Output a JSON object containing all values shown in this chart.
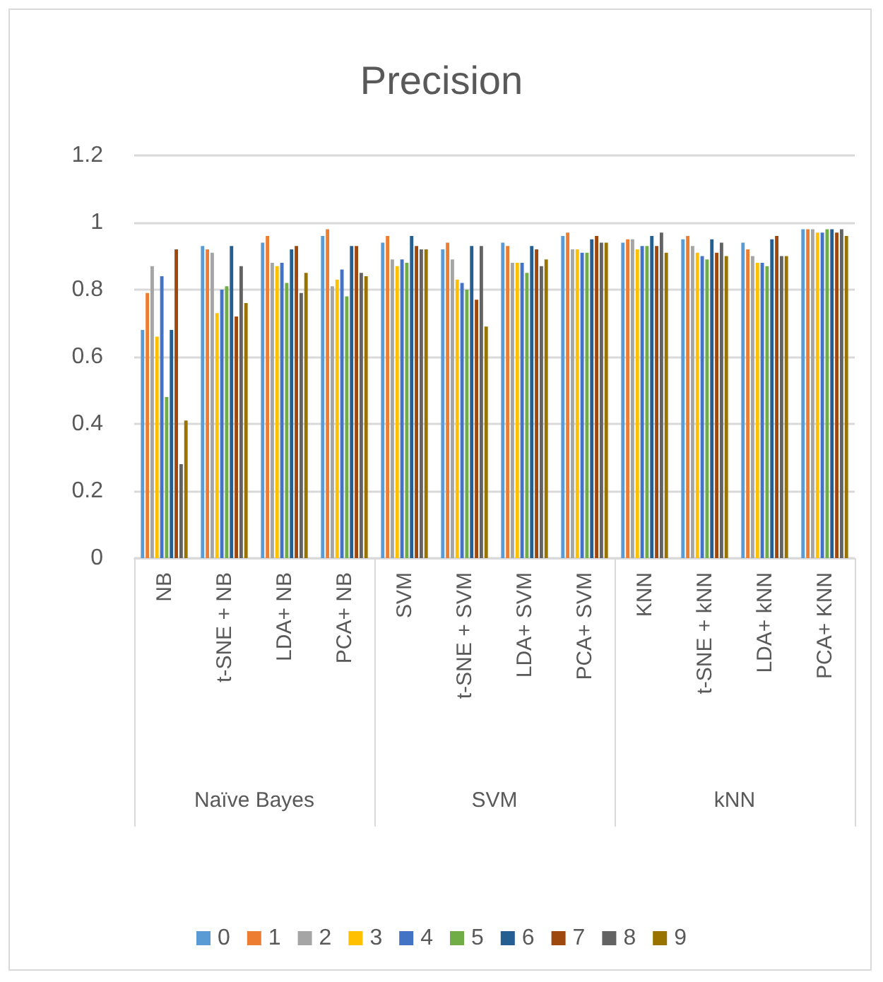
{
  "chart_data": {
    "type": "bar",
    "title": "Precision",
    "categories": [
      "NB",
      "t-SNE + NB",
      "LDA+ NB",
      "PCA+ NB",
      "SVM",
      "t-SNE + SVM",
      "LDA+ SVM",
      "PCA+ SVM",
      "KNN",
      "t-SNE + kNN",
      "LDA+ kNN",
      "PCA+ KNN"
    ],
    "annotations": [
      "Naïve Bayes",
      "SVM",
      "kNN"
    ],
    "series": [
      {
        "name": "0",
        "color": "#5b9bd5",
        "values": [
          0.68,
          0.93,
          0.94,
          0.96,
          0.94,
          0.92,
          0.94,
          0.96,
          0.94,
          0.95,
          0.94,
          0.98
        ]
      },
      {
        "name": "1",
        "color": "#ed7d31",
        "values": [
          0.79,
          0.92,
          0.96,
          0.98,
          0.96,
          0.94,
          0.93,
          0.97,
          0.95,
          0.96,
          0.92,
          0.98
        ]
      },
      {
        "name": "2",
        "color": "#a5a5a5",
        "values": [
          0.87,
          0.91,
          0.88,
          0.81,
          0.89,
          0.89,
          0.88,
          0.92,
          0.95,
          0.93,
          0.9,
          0.98
        ]
      },
      {
        "name": "3",
        "color": "#ffc000",
        "values": [
          0.66,
          0.73,
          0.87,
          0.83,
          0.87,
          0.83,
          0.88,
          0.92,
          0.92,
          0.91,
          0.88,
          0.97
        ]
      },
      {
        "name": "4",
        "color": "#4472c4",
        "values": [
          0.84,
          0.8,
          0.88,
          0.86,
          0.89,
          0.82,
          0.88,
          0.91,
          0.93,
          0.9,
          0.88,
          0.97
        ]
      },
      {
        "name": "5",
        "color": "#70ad47",
        "values": [
          0.48,
          0.81,
          0.82,
          0.78,
          0.88,
          0.8,
          0.85,
          0.91,
          0.93,
          0.89,
          0.87,
          0.98
        ]
      },
      {
        "name": "6",
        "color": "#255e91",
        "values": [
          0.68,
          0.93,
          0.92,
          0.93,
          0.96,
          0.93,
          0.93,
          0.95,
          0.96,
          0.95,
          0.95,
          0.98
        ]
      },
      {
        "name": "7",
        "color": "#9e480e",
        "values": [
          0.92,
          0.72,
          0.93,
          0.93,
          0.93,
          0.77,
          0.92,
          0.96,
          0.93,
          0.91,
          0.96,
          0.97
        ]
      },
      {
        "name": "8",
        "color": "#636363",
        "values": [
          0.28,
          0.87,
          0.79,
          0.85,
          0.92,
          0.93,
          0.87,
          0.94,
          0.97,
          0.94,
          0.9,
          0.98
        ]
      },
      {
        "name": "9",
        "color": "#997300",
        "values": [
          0.41,
          0.76,
          0.85,
          0.84,
          0.92,
          0.69,
          0.89,
          0.94,
          0.91,
          0.9,
          0.9,
          0.96
        ]
      }
    ],
    "ylim": [
      0,
      1.2
    ],
    "yticks": [
      0,
      0.2,
      0.4,
      0.6,
      0.8,
      1,
      1.2
    ],
    "grid": "y",
    "legend": "bottom"
  }
}
